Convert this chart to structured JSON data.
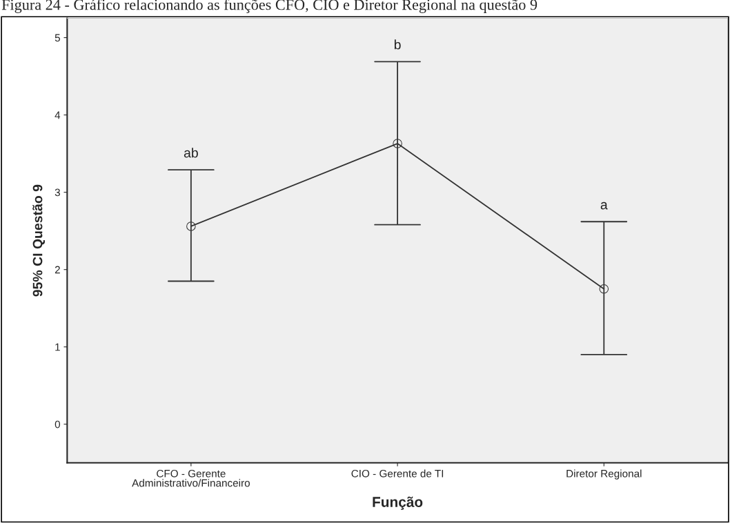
{
  "chart_data": {
    "type": "line",
    "title": "Figura 24 - Gráfico relacionando as funções CFO, CIO e Diretor Regional na questão 9",
    "xlabel": "Função",
    "ylabel": "95% CI Questão 9",
    "categories": [
      "CFO - Gerente\nAdministrativo/Financeiro",
      "CIO - Gerente de TI",
      "Diretor Regional"
    ],
    "series": [
      {
        "color": "#333333",
        "values": [
          2.56,
          3.63,
          1.75
        ],
        "errors": [
          [
            1.85,
            3.29
          ],
          [
            2.58,
            4.69
          ],
          [
            0.9,
            2.62
          ]
        ]
      }
    ],
    "annotations": [
      "ab",
      "b",
      "a"
    ],
    "ylim": [
      -0.5,
      5.25
    ],
    "yticks": [
      0,
      1,
      2,
      3,
      4,
      5
    ],
    "marker": "circle",
    "line_style": "solid",
    "grid": false,
    "legend": false
  }
}
